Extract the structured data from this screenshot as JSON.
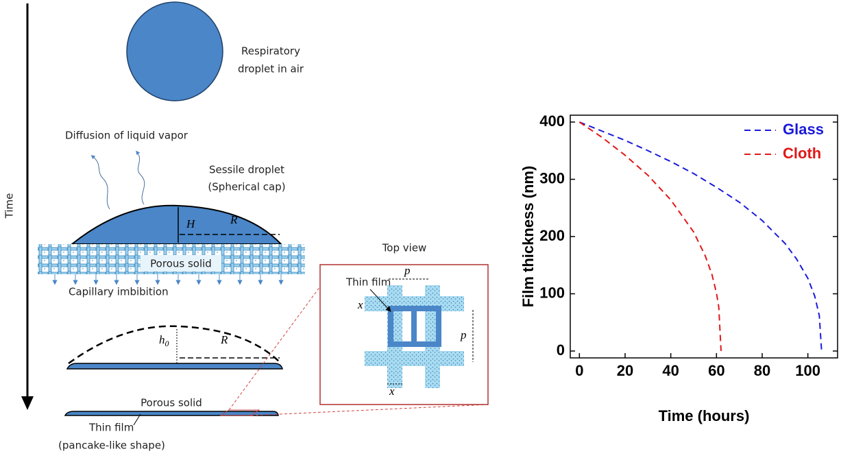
{
  "diagram": {
    "time_label": "Time",
    "droplet_air": [
      "Respiratory",
      "droplet in air"
    ],
    "diffusion": "Diffusion of liquid vapor",
    "sessile": [
      "Sessile droplet",
      "(Spherical cap)"
    ],
    "H": "H",
    "R1": "R",
    "porous1": "Porous solid",
    "capillary": "Capillary imbibition",
    "h0": {
      "h": "h",
      "sub": "0"
    },
    "R2": "R",
    "porous2": "Porous solid",
    "thin_film": "Thin film",
    "pancake": "(pancake-like shape)",
    "top_view": "Top view",
    "inset_thin_film": "Thin film",
    "p_top": "p",
    "p_right": "p",
    "x_left": "x",
    "x_bottom": "x"
  },
  "chart_data": {
    "type": "line",
    "xlabel": "Time (hours)",
    "ylabel": "Film thickness (nm)",
    "xlim": [
      -4,
      113
    ],
    "ylim": [
      -12,
      412
    ],
    "xticks": [
      0,
      20,
      40,
      60,
      80,
      100
    ],
    "yticks": [
      0,
      100,
      200,
      300,
      400
    ],
    "legend": "upper right",
    "dashed": true,
    "series": [
      {
        "name": "Glass",
        "color": "#1a1adb",
        "x": [
          0,
          10,
          20,
          30,
          40,
          50,
          60,
          70,
          80,
          90,
          95,
          100,
          103,
          105,
          106
        ],
        "values": [
          400,
          384,
          368,
          350,
          331,
          310,
          286,
          260,
          228,
          188,
          161,
          127,
          96,
          62,
          0
        ]
      },
      {
        "name": "Cloth",
        "color": "#e01818",
        "x": [
          0,
          10,
          20,
          30,
          40,
          50,
          55,
          58,
          60,
          61,
          62
        ],
        "values": [
          400,
          373,
          342,
          307,
          264,
          208,
          167,
          134,
          101,
          77,
          0
        ]
      }
    ]
  }
}
